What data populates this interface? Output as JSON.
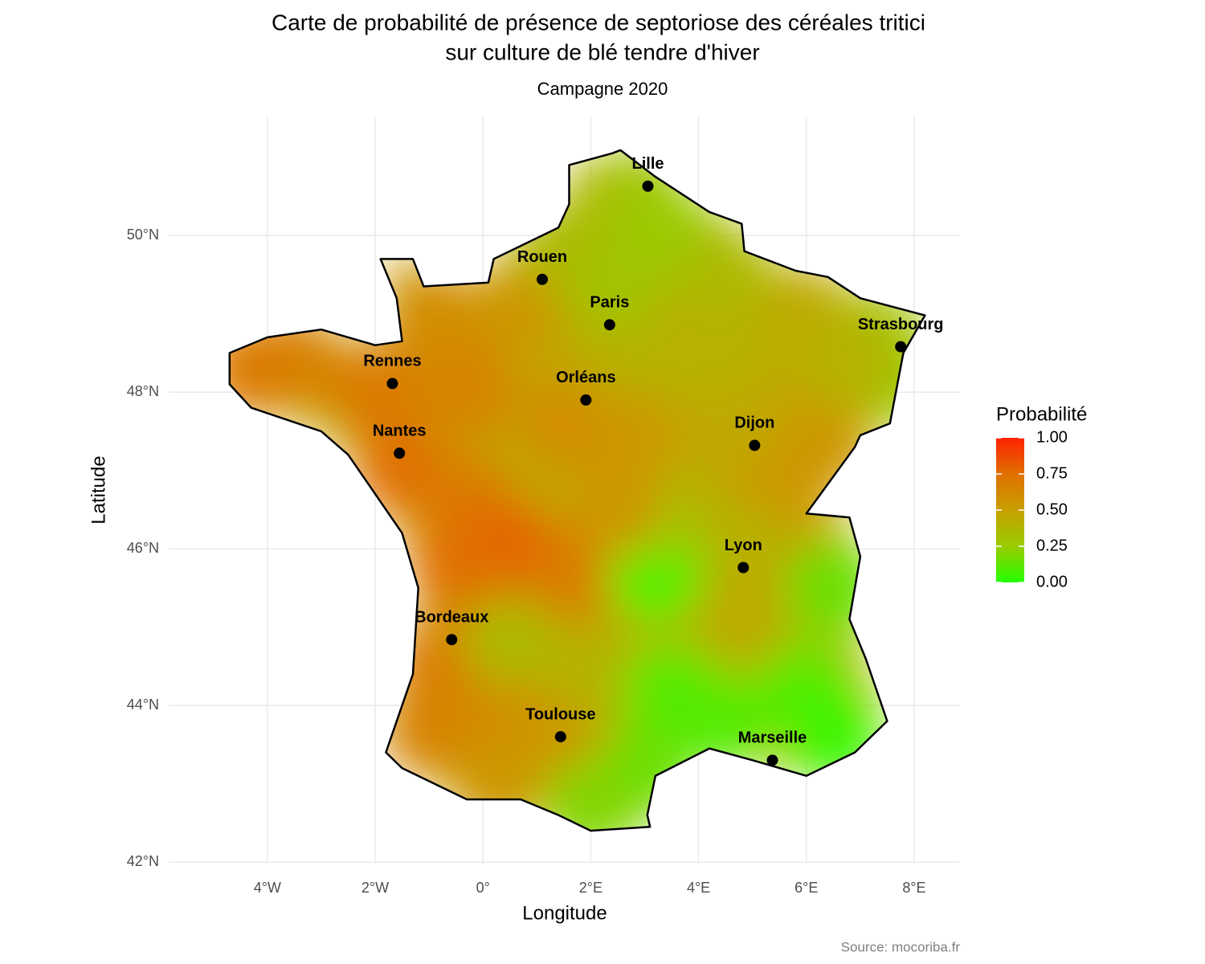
{
  "chart_data": {
    "type": "map",
    "title": [
      "Carte de probabilité de présence de septoriose des céréales tritici",
      "sur culture de blé tendre d'hiver"
    ],
    "subtitle": "Campagne 2020",
    "x_label": "Longitude",
    "y_label": "Latitude",
    "caption": "Source: mocoriba.fr",
    "xlim": [
      -5.83,
      8.85
    ],
    "ylim": [
      41.98,
      51.52
    ],
    "xticks": [
      {
        "value": -4,
        "label": "4°W"
      },
      {
        "value": -2,
        "label": "2°W"
      },
      {
        "value": 0,
        "label": "0°"
      },
      {
        "value": 2,
        "label": "2°E"
      },
      {
        "value": 4,
        "label": "4°E"
      },
      {
        "value": 6,
        "label": "6°E"
      },
      {
        "value": 8,
        "label": "8°E"
      }
    ],
    "yticks": [
      {
        "value": 42,
        "label": "42°N"
      },
      {
        "value": 44,
        "label": "44°N"
      },
      {
        "value": 46,
        "label": "46°N"
      },
      {
        "value": 48,
        "label": "48°N"
      },
      {
        "value": 50,
        "label": "50°N"
      }
    ],
    "grid": true,
    "legend": {
      "title": "Probabilité",
      "ticks": [
        {
          "value": 0,
          "label": "0.00"
        },
        {
          "value": 0.25,
          "label": "0.25"
        },
        {
          "value": 0.5,
          "label": "0.50"
        },
        {
          "value": 0.75,
          "label": "0.75"
        },
        {
          "value": 1,
          "label": "1.00"
        }
      ],
      "colors": [
        "#22ff00",
        "#99cc00",
        "#c8a000",
        "#e07000",
        "#ff2200"
      ]
    },
    "surface": {
      "lon": [
        2.8,
        3.5,
        1.5,
        2.5,
        4.5,
        6.0,
        7.3,
        4.5,
        3.0,
        0.5,
        -1.0,
        -3.5,
        -4.3,
        -2.0,
        -0.3,
        1.5,
        2.8,
        4.3,
        5.5,
        6.3,
        5.5,
        -1.5,
        -0.3,
        0.5,
        -0.5,
        1.7,
        3.2,
        3.0,
        4.8,
        5.5,
        6.5,
        -0.8,
        0.5,
        -1.0,
        0.5,
        1.5,
        2.2,
        3.5,
        3.0,
        4.5,
        6.0,
        6.5,
        0.3,
        2.0,
        7.6,
        6.8,
        2.5
      ],
      "lat": [
        50.5,
        50.0,
        49.8,
        49.3,
        49.5,
        49.0,
        48.7,
        48.5,
        48.3,
        49.0,
        49.0,
        48.4,
        48.3,
        48.0,
        48.0,
        47.6,
        47.4,
        47.5,
        47.8,
        47.3,
        46.6,
        47.0,
        46.6,
        46.0,
        45.8,
        45.7,
        45.7,
        46.4,
        46.0,
        45.4,
        45.5,
        44.5,
        44.8,
        43.7,
        43.7,
        43.5,
        44.4,
        44.2,
        43.2,
        43.8,
        44.2,
        43.6,
        43.0,
        42.7,
        48.2,
        48.4,
        46.6
      ],
      "values": [
        0.3,
        0.25,
        0.35,
        0.3,
        0.35,
        0.45,
        0.3,
        0.4,
        0.4,
        0.55,
        0.6,
        0.65,
        0.7,
        0.7,
        0.65,
        0.6,
        0.55,
        0.45,
        0.45,
        0.55,
        0.55,
        0.75,
        0.7,
        0.8,
        0.75,
        0.7,
        0.05,
        0.25,
        0.4,
        0.45,
        0.15,
        0.7,
        0.35,
        0.65,
        0.6,
        0.55,
        0.4,
        0.1,
        0.15,
        0.1,
        0.1,
        0.05,
        0.55,
        0.2,
        0.25,
        0.4,
        0.55
      ]
    },
    "cities": {
      "names": [
        "Lille",
        "Rouen",
        "Paris",
        "Strasbourg",
        "Rennes",
        "Orléans",
        "Dijon",
        "Nantes",
        "Lyon",
        "Bordeaux",
        "Toulouse",
        "Marseille"
      ],
      "lon": [
        3.06,
        1.1,
        2.35,
        7.75,
        -1.68,
        1.91,
        5.04,
        -1.55,
        4.83,
        -0.58,
        1.44,
        5.37
      ],
      "lat": [
        50.63,
        49.44,
        48.86,
        48.58,
        48.11,
        47.9,
        47.32,
        47.22,
        45.76,
        44.84,
        43.6,
        43.3
      ]
    }
  }
}
